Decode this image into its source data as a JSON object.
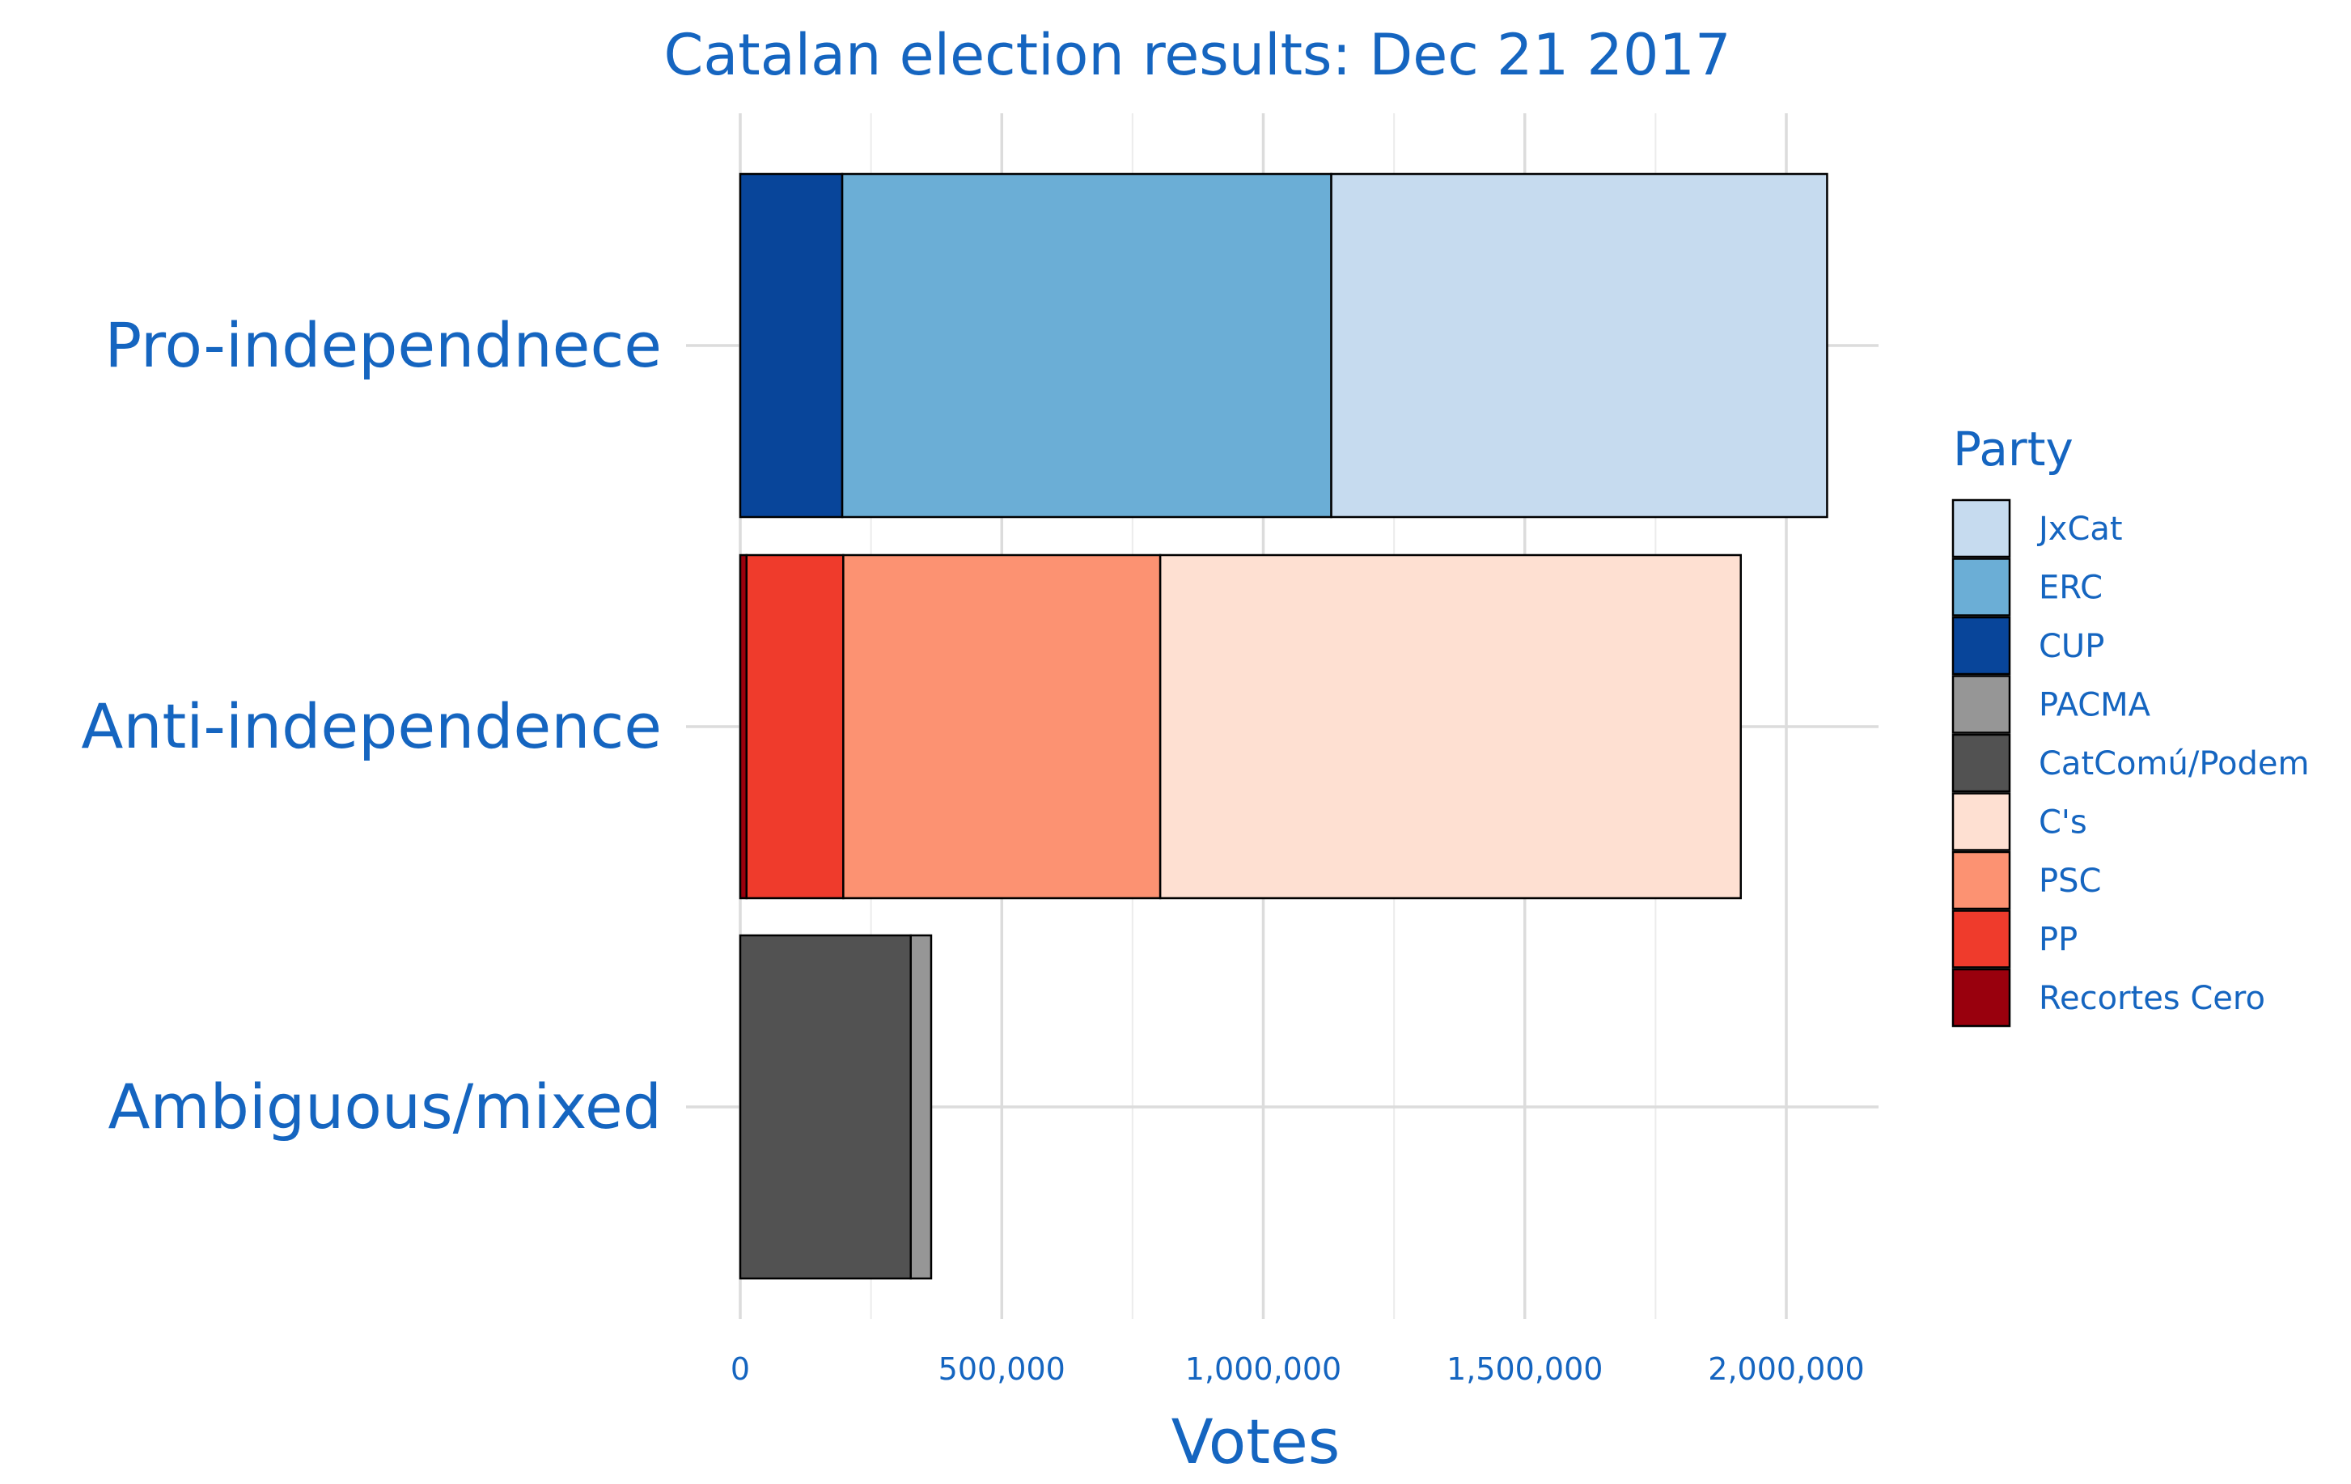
{
  "chart_data": {
    "type": "bar",
    "orientation": "horizontal",
    "stacked": true,
    "title": "Catalan election results: Dec 21 2017",
    "xlabel": "Votes",
    "ylabel": "",
    "xlim": [
      0,
      2180000
    ],
    "x_ticks": [
      0,
      500000,
      1000000,
      1500000,
      2000000
    ],
    "x_tick_labels": [
      "0",
      "500,000",
      "1,000,000",
      "1,500,000",
      "2,000,000"
    ],
    "grid": true,
    "legend": {
      "title": "Party",
      "placement": "right",
      "items": [
        {
          "name": "JxCat",
          "color": "#c6dbef"
        },
        {
          "name": "ERC",
          "color": "#6baed6"
        },
        {
          "name": "CUP",
          "color": "#08459a"
        },
        {
          "name": "PACMA",
          "color": "#969696"
        },
        {
          "name": "CatComú/Podem",
          "color": "#525252"
        },
        {
          "name": "C's",
          "color": "#fee0d2"
        },
        {
          "name": "PSC",
          "color": "#fc9272"
        },
        {
          "name": "PP",
          "color": "#ef3b2c"
        },
        {
          "name": "Recortes Cero",
          "color": "#99000d"
        }
      ]
    },
    "categories": [
      "Pro-independnece",
      "Anti-independence",
      "Ambiguous/mixed"
    ],
    "bars": [
      {
        "category": "Pro-independnece",
        "segments": [
          {
            "party": "CUP",
            "value": 195000
          },
          {
            "party": "ERC",
            "value": 935000
          },
          {
            "party": "JxCat",
            "value": 948000
          }
        ]
      },
      {
        "category": "Anti-independence",
        "segments": [
          {
            "party": "Recortes Cero",
            "value": 12000
          },
          {
            "party": "PP",
            "value": 185000
          },
          {
            "party": "PSC",
            "value": 606000
          },
          {
            "party": "C's",
            "value": 1110000
          }
        ]
      },
      {
        "category": "Ambiguous/mixed",
        "segments": [
          {
            "party": "CatComú/Podem",
            "value": 326000
          },
          {
            "party": "PACMA",
            "value": 39000
          }
        ]
      }
    ]
  }
}
